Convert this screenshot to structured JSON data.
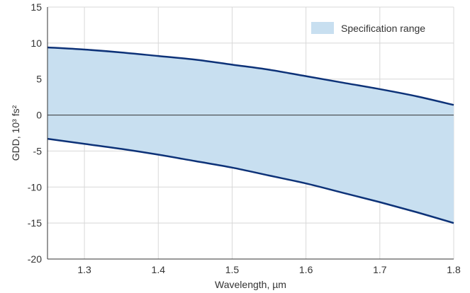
{
  "chart_data": {
    "type": "area",
    "xlabel": "Wavelength, µm",
    "ylabel": "GDD, 10³ fs²",
    "xlim": [
      1.25,
      1.8
    ],
    "ylim": [
      -20,
      15
    ],
    "x_ticks": [
      1.3,
      1.4,
      1.5,
      1.6,
      1.7,
      1.8
    ],
    "x_tick_labels": [
      "1.3",
      "1.4",
      "1.5",
      "1.6",
      "1.7",
      "1.8"
    ],
    "y_ticks": [
      15,
      10,
      5,
      0,
      -5,
      -10,
      -15,
      -20
    ],
    "y_tick_labels": [
      "15",
      "10",
      "5",
      "0",
      "-5",
      "-10",
      "-15",
      "-20"
    ],
    "grid": true,
    "legend_position": "top-right",
    "legend_label": "Specification range",
    "band": {
      "name": "Specification range",
      "x": [
        1.25,
        1.3,
        1.35,
        1.4,
        1.45,
        1.5,
        1.55,
        1.6,
        1.65,
        1.7,
        1.75,
        1.8
      ],
      "upper": [
        9.4,
        9.1,
        8.7,
        8.2,
        7.7,
        7.0,
        6.3,
        5.4,
        4.5,
        3.6,
        2.6,
        1.4
      ],
      "lower": [
        -3.3,
        -4.0,
        -4.7,
        -5.5,
        -6.4,
        -7.3,
        -8.4,
        -9.5,
        -10.8,
        -12.1,
        -13.5,
        -15.0
      ]
    },
    "colors": {
      "band_fill": "#c8dff0",
      "boundary_line": "#0d3278",
      "zero_line": "#333333",
      "grid": "#d8d8d8",
      "axis": "#333333"
    }
  }
}
